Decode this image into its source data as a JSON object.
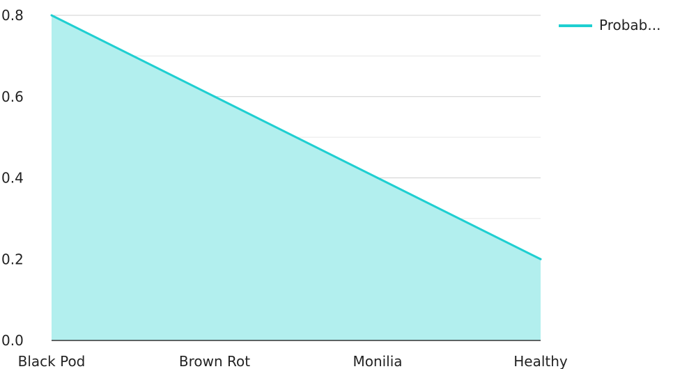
{
  "chart_data": {
    "type": "area",
    "categories": [
      "Black Pod",
      "Brown Rot",
      "Monilia",
      "Healthy"
    ],
    "series": [
      {
        "name": "Probab...",
        "values": [
          0.8,
          0.6,
          0.4,
          0.2
        ],
        "line_color": "#1fcfd1",
        "fill_color": "#b2efee"
      }
    ],
    "ylim": [
      0,
      0.8
    ],
    "yticks": [
      "0.0",
      "0.2",
      "0.4",
      "0.6",
      "0.8"
    ],
    "title": "",
    "xlabel": "",
    "ylabel": "",
    "grid": true,
    "legend": "top-right"
  }
}
